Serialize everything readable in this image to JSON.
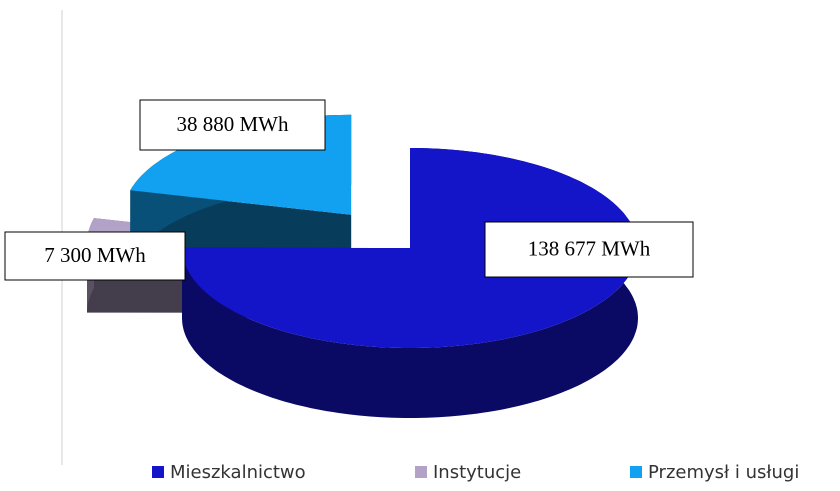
{
  "chart_data": {
    "type": "pie",
    "categories": [
      "Mieszkalnictwo",
      "Instytucje",
      "Przemysł i usługi"
    ],
    "values": [
      138677,
      7300,
      38880
    ],
    "value_labels": [
      "138 677 MWh",
      "7 300 MWh",
      "38 880 MWh"
    ],
    "colors": [
      "#1414c8",
      "#b3a2c7",
      "#12a0f0"
    ],
    "legend": "bottom"
  }
}
